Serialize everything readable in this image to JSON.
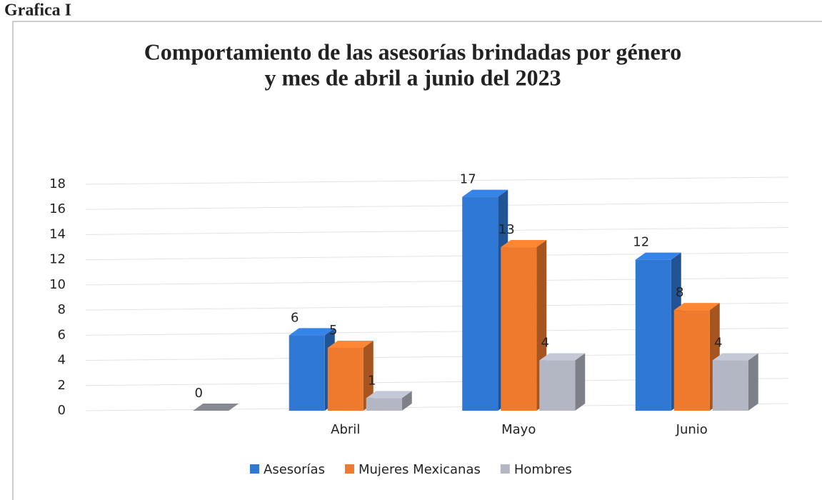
{
  "page_label": "Grafica I",
  "chart_data": {
    "type": "bar3d",
    "title": [
      "Comportamiento de las asesorías brindadas  por género",
      "y mes de abril a junio del 2023"
    ],
    "categories": [
      null,
      "Abril",
      "Mayo",
      "Junio"
    ],
    "series": [
      {
        "name": "Asesorías",
        "color": "#2f78d4",
        "values": [
          null,
          6,
          17,
          12
        ]
      },
      {
        "name": "Mujeres Mexicanas",
        "color": "#ef7a2e",
        "values": [
          null,
          5,
          13,
          8
        ]
      },
      {
        "name": "Hombres",
        "color": "#b3b7c3",
        "values": [
          0,
          1,
          4,
          4
        ]
      }
    ],
    "ylim": [
      0,
      18
    ],
    "yticks": [
      0,
      2,
      4,
      6,
      8,
      10,
      12,
      14,
      16,
      18
    ],
    "grid": true,
    "legend": "bottom"
  }
}
